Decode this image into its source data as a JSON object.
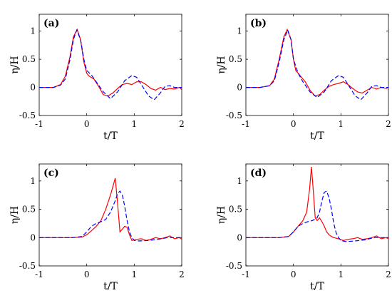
{
  "chart_data": [
    {
      "type": "line",
      "panel_label": "(a)",
      "xlabel": "t/T",
      "ylabel": "η/H",
      "xlim": [
        -1,
        2
      ],
      "ylim": [
        -0.5,
        1.3
      ],
      "xticks": [
        -1,
        0,
        1,
        2
      ],
      "yticks": [
        -0.5,
        0,
        0.5,
        1
      ],
      "xtick_labels": [
        "-1",
        "0",
        "1",
        "2"
      ],
      "ytick_labels": [
        "-0.5",
        "0",
        "0.5",
        "1"
      ],
      "series": [
        {
          "color": "#ff0000",
          "style": "solid",
          "x": [
            -1,
            -0.7,
            -0.55,
            -0.45,
            -0.35,
            -0.28,
            -0.2,
            -0.13,
            -0.06,
            0,
            0.05,
            0.15,
            0.25,
            0.35,
            0.45,
            0.55,
            0.65,
            0.75,
            0.85,
            0.95,
            1.05,
            1.15,
            1.25,
            1.35,
            1.45,
            1.55,
            1.65,
            1.75,
            1.85,
            1.95,
            2.0
          ],
          "y": [
            0,
            0,
            0.05,
            0.2,
            0.55,
            0.9,
            1.03,
            0.85,
            0.45,
            0.25,
            0.2,
            0.15,
            0.02,
            -0.13,
            -0.15,
            -0.1,
            -0.02,
            0.05,
            0.07,
            0.05,
            0.1,
            0.1,
            0.05,
            -0.02,
            -0.05,
            0.0,
            -0.04,
            -0.02,
            -0.03,
            0.0,
            -0.04
          ]
        },
        {
          "color": "#0000ff",
          "style": "dashed",
          "x": [
            -1,
            -0.7,
            -0.55,
            -0.45,
            -0.35,
            -0.28,
            -0.21,
            -0.13,
            -0.06,
            0,
            0.1,
            0.2,
            0.35,
            0.5,
            0.65,
            0.8,
            0.95,
            1.05,
            1.15,
            1.3,
            1.42,
            1.55,
            1.65,
            1.75,
            1.85,
            2.0
          ],
          "y": [
            0,
            0,
            0.04,
            0.15,
            0.5,
            0.85,
            1.02,
            0.85,
            0.5,
            0.3,
            0.22,
            0.1,
            -0.08,
            -0.2,
            -0.08,
            0.12,
            0.21,
            0.18,
            0.05,
            -0.15,
            -0.22,
            -0.1,
            0.02,
            0.03,
            0.0,
            0.0
          ]
        }
      ]
    },
    {
      "type": "line",
      "panel_label": "(b)",
      "xlabel": "t/T",
      "ylabel": "η/H",
      "xlim": [
        -1,
        2
      ],
      "ylim": [
        -0.5,
        1.3
      ],
      "xticks": [
        -1,
        0,
        1,
        2
      ],
      "yticks": [
        -0.5,
        0,
        0.5,
        1
      ],
      "xtick_labels": [
        "-1",
        "0",
        "1",
        "2"
      ],
      "ytick_labels": [
        "-0.5",
        "0",
        "0.5",
        "1"
      ],
      "series": [
        {
          "color": "#ff0000",
          "style": "solid",
          "x": [
            -1,
            -0.7,
            -0.5,
            -0.4,
            -0.3,
            -0.2,
            -0.13,
            -0.05,
            0,
            0.05,
            0.15,
            0.25,
            0.35,
            0.45,
            0.55,
            0.65,
            0.75,
            0.85,
            0.95,
            1.05,
            1.15,
            1.25,
            1.35,
            1.45,
            1.55,
            1.65,
            1.75,
            1.85,
            1.95,
            2.0
          ],
          "y": [
            0,
            0,
            0.03,
            0.15,
            0.5,
            0.9,
            1.03,
            0.85,
            0.5,
            0.3,
            0.2,
            0.1,
            -0.05,
            -0.15,
            -0.13,
            -0.05,
            0.02,
            0.05,
            0.07,
            0.1,
            0.05,
            -0.02,
            -0.08,
            -0.1,
            -0.05,
            0.0,
            -0.03,
            0.0,
            -0.02,
            0.0
          ]
        },
        {
          "color": "#0000ff",
          "style": "dashed",
          "x": [
            -1,
            -0.7,
            -0.5,
            -0.4,
            -0.3,
            -0.2,
            -0.12,
            -0.05,
            0,
            0.1,
            0.2,
            0.35,
            0.5,
            0.65,
            0.8,
            0.95,
            1.05,
            1.15,
            1.3,
            1.42,
            1.55,
            1.65,
            1.75,
            1.85,
            2.0
          ],
          "y": [
            0,
            0,
            0.03,
            0.12,
            0.45,
            0.85,
            1.02,
            0.85,
            0.5,
            0.25,
            0.1,
            -0.08,
            -0.18,
            -0.08,
            0.12,
            0.21,
            0.18,
            0.05,
            -0.15,
            -0.22,
            -0.1,
            0.02,
            0.03,
            0.0,
            0.0
          ]
        }
      ]
    },
    {
      "type": "line",
      "panel_label": "(c)",
      "xlabel": "t/T",
      "ylabel": "η/H",
      "xlim": [
        -1,
        2
      ],
      "ylim": [
        -0.5,
        1.3
      ],
      "xticks": [
        -1,
        0,
        1,
        2
      ],
      "yticks": [
        -0.5,
        0,
        0.5,
        1
      ],
      "xtick_labels": [
        "-1",
        "0",
        "1",
        "2"
      ],
      "ytick_labels": [
        "-0.5",
        "0",
        "0.5",
        "1"
      ],
      "series": [
        {
          "color": "#ff0000",
          "style": "solid",
          "x": [
            -1,
            -0.3,
            -0.1,
            0.0,
            0.1,
            0.2,
            0.3,
            0.4,
            0.5,
            0.6,
            0.65,
            0.7,
            0.75,
            0.8,
            0.85,
            0.9,
            0.95,
            1.05,
            1.15,
            1.25,
            1.35,
            1.45,
            1.55,
            1.65,
            1.75,
            1.85,
            1.95,
            2.0
          ],
          "y": [
            0,
            0,
            0.01,
            0.05,
            0.12,
            0.2,
            0.3,
            0.5,
            0.75,
            1.05,
            0.6,
            0.1,
            0.15,
            0.2,
            0.18,
            0.05,
            -0.05,
            -0.03,
            -0.02,
            -0.05,
            -0.03,
            0.0,
            -0.02,
            0.0,
            0.03,
            -0.02,
            0.0,
            -0.03
          ]
        },
        {
          "color": "#0000ff",
          "style": "dashed",
          "x": [
            -1,
            -0.3,
            -0.1,
            0.0,
            0.1,
            0.2,
            0.3,
            0.4,
            0.5,
            0.6,
            0.65,
            0.7,
            0.75,
            0.8,
            0.85,
            0.9,
            0.95,
            1.0,
            1.1,
            1.3,
            1.5,
            1.7,
            2.0
          ],
          "y": [
            0,
            0,
            0.02,
            0.1,
            0.2,
            0.25,
            0.28,
            0.32,
            0.45,
            0.65,
            0.78,
            0.82,
            0.75,
            0.55,
            0.3,
            0.1,
            0.0,
            -0.05,
            -0.06,
            -0.05,
            -0.03,
            0.0,
            0.0
          ]
        }
      ]
    },
    {
      "type": "line",
      "panel_label": "(d)",
      "xlabel": "t/T",
      "ylabel": "η/H",
      "xlim": [
        -1,
        2
      ],
      "ylim": [
        -0.5,
        1.3
      ],
      "xticks": [
        -1,
        0,
        1,
        2
      ],
      "yticks": [
        -0.5,
        0,
        0.5,
        1
      ],
      "xtick_labels": [
        "-1",
        "0",
        "1",
        "2"
      ],
      "ytick_labels": [
        "-0.5",
        "0",
        "0.5",
        "1"
      ],
      "series": [
        {
          "color": "#ff0000",
          "style": "solid",
          "x": [
            -1,
            -0.3,
            -0.1,
            0.0,
            0.1,
            0.2,
            0.28,
            0.34,
            0.38,
            0.42,
            0.46,
            0.5,
            0.55,
            0.6,
            0.65,
            0.7,
            0.75,
            0.8,
            0.85,
            0.95,
            1.05,
            1.15,
            1.25,
            1.35,
            1.45,
            1.55,
            1.65,
            1.75,
            1.85,
            1.95,
            2.0
          ],
          "y": [
            0,
            0,
            0.02,
            0.1,
            0.2,
            0.3,
            0.45,
            0.85,
            1.25,
            0.8,
            0.35,
            0.3,
            0.35,
            0.28,
            0.2,
            0.1,
            0.05,
            0.02,
            0.0,
            -0.02,
            -0.05,
            -0.03,
            -0.02,
            0.0,
            -0.03,
            -0.02,
            0.0,
            0.03,
            -0.02,
            0.0,
            -0.02
          ]
        },
        {
          "color": "#0000ff",
          "style": "dashed",
          "x": [
            -1,
            -0.3,
            -0.1,
            0.0,
            0.1,
            0.2,
            0.3,
            0.4,
            0.5,
            0.55,
            0.6,
            0.65,
            0.7,
            0.75,
            0.8,
            0.85,
            0.9,
            0.95,
            1.0,
            1.1,
            1.3,
            1.5,
            1.7,
            2.0
          ],
          "y": [
            0,
            0,
            0.02,
            0.1,
            0.2,
            0.25,
            0.28,
            0.3,
            0.35,
            0.45,
            0.65,
            0.8,
            0.82,
            0.7,
            0.5,
            0.25,
            0.08,
            0.0,
            -0.05,
            -0.07,
            -0.06,
            -0.04,
            0.0,
            0.0
          ]
        }
      ]
    }
  ]
}
